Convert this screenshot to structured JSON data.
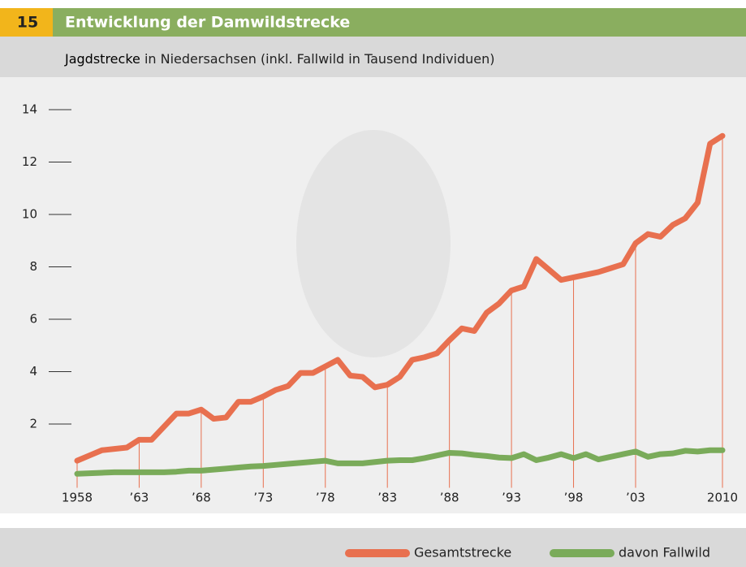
{
  "chart_data": {
    "type": "line",
    "number": "15",
    "title": "Entwicklung der Damwildstrecke",
    "subtitle_highlight": "Jagdstrecke",
    "subtitle": " in Niedersachsen (inkl. Fallwild in Tausend Individuen)",
    "x": [
      1958,
      1959,
      1960,
      1961,
      1962,
      1963,
      1964,
      1965,
      1966,
      1967,
      1968,
      1969,
      1970,
      1971,
      1972,
      1973,
      1974,
      1975,
      1976,
      1977,
      1978,
      1979,
      1980,
      1981,
      1982,
      1983,
      1984,
      1985,
      1986,
      1987,
      1988,
      1989,
      1990,
      1991,
      1992,
      1993,
      1994,
      1995,
      1996,
      1997,
      1998,
      1999,
      2000,
      2001,
      2002,
      2003,
      2004,
      2005,
      2006,
      2007,
      2008,
      2009,
      2010
    ],
    "series": [
      {
        "name": "Gesamtstrecke",
        "color": "#e8704f",
        "values": [
          0.6,
          0.8,
          1.0,
          1.05,
          1.1,
          1.4,
          1.4,
          1.9,
          2.4,
          2.4,
          2.55,
          2.2,
          2.25,
          2.85,
          2.85,
          3.05,
          3.3,
          3.45,
          3.95,
          3.95,
          4.2,
          4.45,
          3.85,
          3.8,
          3.4,
          3.5,
          3.8,
          4.45,
          4.55,
          4.7,
          5.2,
          5.65,
          5.55,
          6.25,
          6.6,
          7.1,
          7.25,
          8.3,
          7.9,
          7.5,
          7.6,
          7.7,
          7.8,
          7.95,
          8.1,
          8.9,
          9.25,
          9.15,
          9.6,
          9.85,
          10.45,
          12.7,
          13.0
        ]
      },
      {
        "name": "davon Fallwild",
        "color": "#7aab5a",
        "values": [
          0.1,
          0.12,
          0.14,
          0.16,
          0.16,
          0.16,
          0.16,
          0.16,
          0.18,
          0.22,
          0.22,
          0.26,
          0.3,
          0.34,
          0.38,
          0.4,
          0.44,
          0.48,
          0.52,
          0.56,
          0.6,
          0.5,
          0.5,
          0.5,
          0.55,
          0.6,
          0.62,
          0.62,
          0.7,
          0.8,
          0.9,
          0.88,
          0.82,
          0.78,
          0.72,
          0.7,
          0.85,
          0.62,
          0.72,
          0.85,
          0.7,
          0.85,
          0.65,
          0.75,
          0.85,
          0.95,
          0.75,
          0.85,
          0.88,
          0.98,
          0.95,
          1.0,
          1.0
        ]
      }
    ],
    "xlim": [
      1958,
      2010
    ],
    "xticks": [
      1958,
      {
        "value": 1963,
        "label": "’63"
      },
      {
        "value": 1968,
        "label": "’68"
      },
      {
        "value": 1973,
        "label": "’73"
      },
      {
        "value": 1978,
        "label": "’78"
      },
      {
        "value": 1983,
        "label": "’83"
      },
      {
        "value": 1988,
        "label": "’88"
      },
      {
        "value": 1993,
        "label": "’93"
      },
      {
        "value": 1998,
        "label": "’98"
      },
      {
        "value": 2003,
        "label": "’03"
      },
      2010
    ],
    "ylim": [
      0,
      14
    ],
    "yticks": [
      2,
      4,
      6,
      8,
      10,
      12,
      14
    ]
  }
}
